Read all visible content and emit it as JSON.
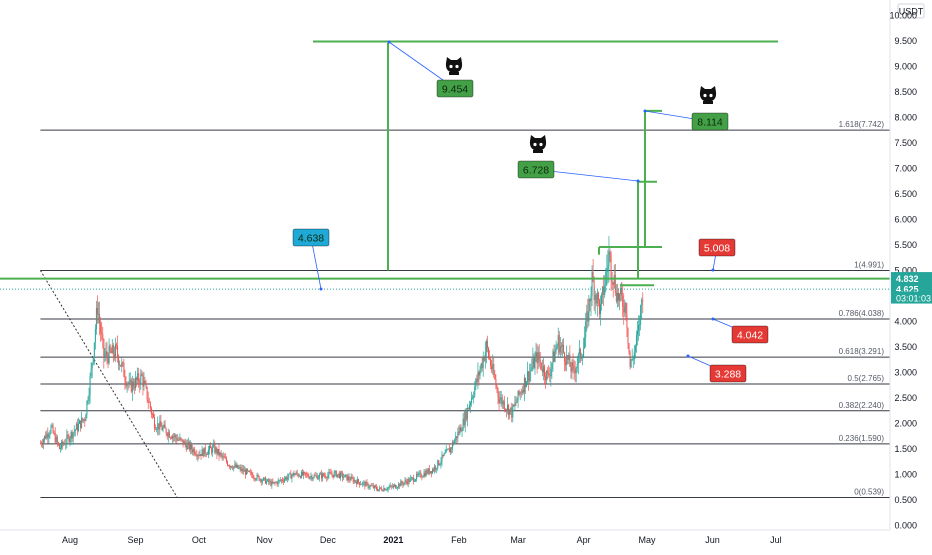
{
  "currency_label": "USDT",
  "chart_data": {
    "type": "candlestick",
    "title": "",
    "xlabel": "",
    "ylabel": "",
    "y_range": [
      0,
      10
    ],
    "x_range_days": [
      0,
      365
    ],
    "y_ticks": [
      0.0,
      0.5,
      1.0,
      1.5,
      2.0,
      2.5,
      3.0,
      3.5,
      4.0,
      4.5,
      5.0,
      5.5,
      6.0,
      6.5,
      7.0,
      7.5,
      8.0,
      8.5,
      9.0,
      9.5,
      10.0
    ],
    "y_tick_labels": [
      "0.000",
      "0.500",
      "1.000",
      "1.500",
      "2.000",
      "2.500",
      "3.000",
      "3.500",
      "4.000",
      "4.500",
      "5.000",
      "5.500",
      "6.000",
      "6.500",
      "7.000",
      "7.500",
      "8.000",
      "8.500",
      "9.000",
      "9.500",
      "10.000"
    ],
    "x_ticks": [
      {
        "label": "Aug",
        "date": "2020-08-01"
      },
      {
        "label": "Sep",
        "date": "2020-09-01"
      },
      {
        "label": "Oct",
        "date": "2020-10-01"
      },
      {
        "label": "Nov",
        "date": "2020-11-01"
      },
      {
        "label": "Dec",
        "date": "2020-12-01"
      },
      {
        "label": "2021",
        "date": "2021-01-01"
      },
      {
        "label": "Feb",
        "date": "2021-02-01"
      },
      {
        "label": "Mar",
        "date": "2021-03-01"
      },
      {
        "label": "Apr",
        "date": "2021-04-01"
      },
      {
        "label": "May",
        "date": "2021-05-01"
      },
      {
        "label": "Jun",
        "date": "2021-06-01"
      },
      {
        "label": "Jul",
        "date": "2021-07-01"
      }
    ],
    "price_path": [
      {
        "date": "2020-07-18",
        "price": 1.6
      },
      {
        "date": "2020-07-23",
        "price": 1.9
      },
      {
        "date": "2020-07-27",
        "price": 1.5
      },
      {
        "date": "2020-08-02",
        "price": 1.8
      },
      {
        "date": "2020-08-08",
        "price": 2.1
      },
      {
        "date": "2020-08-11",
        "price": 3.0
      },
      {
        "date": "2020-08-14",
        "price": 4.3
      },
      {
        "date": "2020-08-17",
        "price": 3.3
      },
      {
        "date": "2020-08-23",
        "price": 3.4
      },
      {
        "date": "2020-08-29",
        "price": 2.7
      },
      {
        "date": "2020-09-04",
        "price": 2.9
      },
      {
        "date": "2020-09-10",
        "price": 2.0
      },
      {
        "date": "2020-09-17",
        "price": 1.8
      },
      {
        "date": "2020-09-24",
        "price": 1.6
      },
      {
        "date": "2020-10-01",
        "price": 1.4
      },
      {
        "date": "2020-10-08",
        "price": 1.5
      },
      {
        "date": "2020-10-15",
        "price": 1.2
      },
      {
        "date": "2020-10-25",
        "price": 1.0
      },
      {
        "date": "2020-11-05",
        "price": 0.8
      },
      {
        "date": "2020-11-15",
        "price": 1.0
      },
      {
        "date": "2020-11-25",
        "price": 0.95
      },
      {
        "date": "2020-12-05",
        "price": 1.0
      },
      {
        "date": "2020-12-15",
        "price": 0.85
      },
      {
        "date": "2020-12-25",
        "price": 0.7
      },
      {
        "date": "2021-01-01",
        "price": 0.75
      },
      {
        "date": "2021-01-10",
        "price": 0.9
      },
      {
        "date": "2021-01-20",
        "price": 1.1
      },
      {
        "date": "2021-01-28",
        "price": 1.5
      },
      {
        "date": "2021-02-03",
        "price": 2.0
      },
      {
        "date": "2021-02-10",
        "price": 2.9
      },
      {
        "date": "2021-02-14",
        "price": 3.5
      },
      {
        "date": "2021-02-20",
        "price": 2.5
      },
      {
        "date": "2021-02-26",
        "price": 2.2
      },
      {
        "date": "2021-03-04",
        "price": 2.8
      },
      {
        "date": "2021-03-10",
        "price": 3.3
      },
      {
        "date": "2021-03-15",
        "price": 2.9
      },
      {
        "date": "2021-03-20",
        "price": 3.6
      },
      {
        "date": "2021-03-27",
        "price": 3.0
      },
      {
        "date": "2021-04-01",
        "price": 3.5
      },
      {
        "date": "2021-04-05",
        "price": 4.8
      },
      {
        "date": "2021-04-09",
        "price": 4.2
      },
      {
        "date": "2021-04-13",
        "price": 5.3
      },
      {
        "date": "2021-04-17",
        "price": 4.5
      },
      {
        "date": "2021-04-21",
        "price": 4.3
      },
      {
        "date": "2021-04-23",
        "price": 3.1
      },
      {
        "date": "2021-04-25",
        "price": 3.4
      },
      {
        "date": "2021-04-27",
        "price": 3.8
      },
      {
        "date": "2021-04-29",
        "price": 4.6
      }
    ],
    "fibonacci_levels": [
      {
        "ratio": "1",
        "label": "1(4.991)",
        "value": 4.991
      },
      {
        "ratio": "0.786",
        "label": "0.786(4.038)",
        "value": 4.038
      },
      {
        "ratio": "0.618",
        "label": "0.618(3.291)",
        "value": 3.291
      },
      {
        "ratio": "0.5",
        "label": "0.5(2.765)",
        "value": 2.765
      },
      {
        "ratio": "0.382",
        "label": "0.382(2.240)",
        "value": 2.24
      },
      {
        "ratio": "0.236",
        "label": "0.236(1.590)",
        "value": 1.59
      },
      {
        "ratio": "0",
        "label": "0(0.539)",
        "value": 0.539
      },
      {
        "ratio": "1.618",
        "label": "1.618(7.742)",
        "value": 7.742
      }
    ],
    "price_labels": [
      {
        "text": "4.832",
        "value": 4.832,
        "color": "#26a69a"
      },
      {
        "text": "4.625",
        "value": 4.625,
        "color": "#26a69a"
      },
      {
        "text": "03:01:03",
        "value": 4.45,
        "color": "#26a69a"
      }
    ],
    "callouts": [
      {
        "text": "9.454",
        "color": "#43a047",
        "icon": true
      },
      {
        "text": "8.114",
        "color": "#43a047",
        "icon": true
      },
      {
        "text": "6.728",
        "color": "#43a047",
        "icon": true
      },
      {
        "text": "4.638",
        "color": "#1ea9d6",
        "icon": false
      },
      {
        "text": "5.008",
        "color": "#e53935",
        "icon": false
      },
      {
        "text": "4.042",
        "color": "#e53935",
        "icon": false
      },
      {
        "text": "3.288",
        "color": "#e53935",
        "icon": false
      }
    ],
    "target_lines": [
      {
        "value": 9.48
      },
      {
        "value": 4.832
      }
    ],
    "colors": {
      "up": "#26a69a",
      "down": "#ef5350",
      "fib_line": "#363a45",
      "target_green": "#4caf50",
      "connector": "#2962ff",
      "axis_text": "#131722"
    }
  }
}
